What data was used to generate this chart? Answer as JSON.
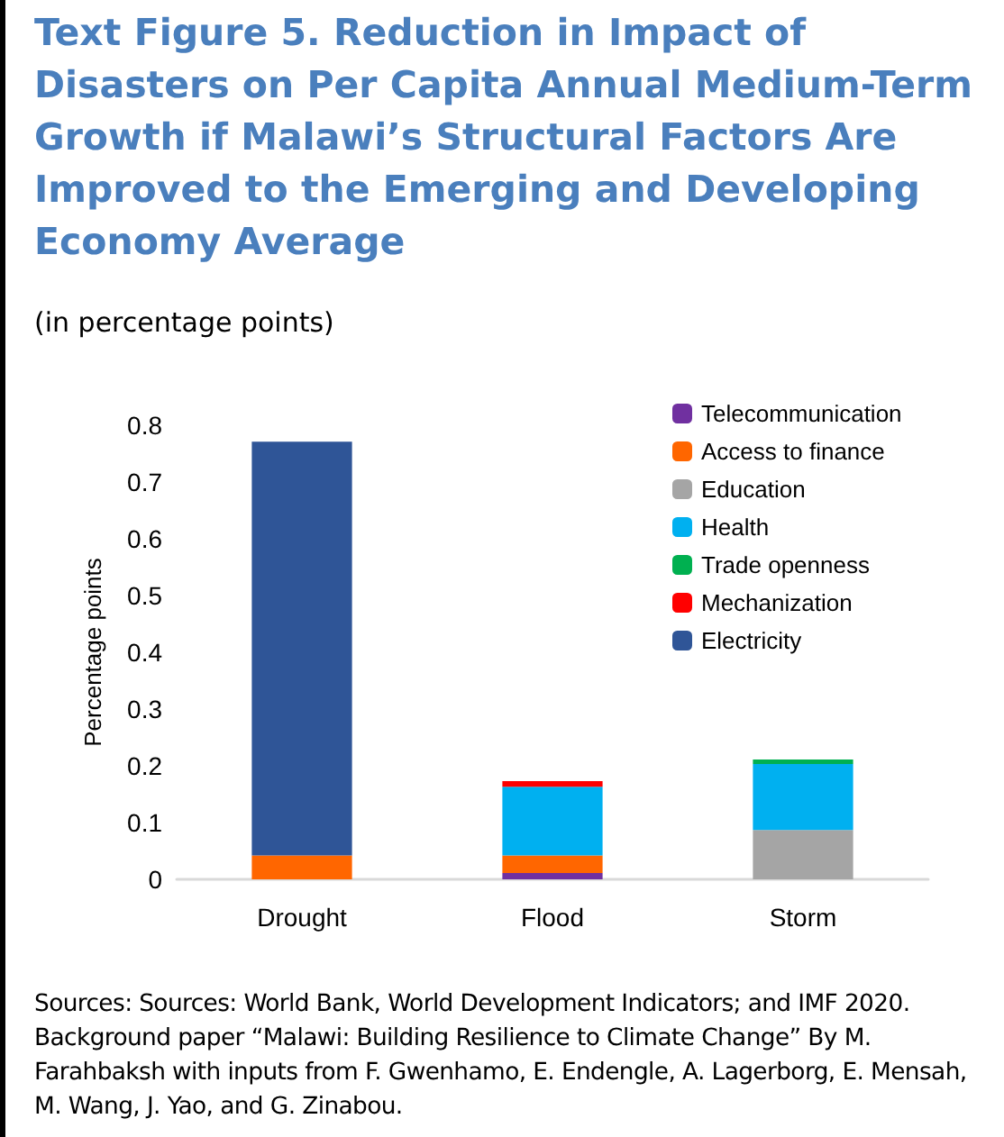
{
  "chart_data": {
    "type": "bar",
    "title": "Text Figure 5. Reduction in Impact of Disasters on Per Capita Annual Medium-Term Growth if Malawi’s Structural Factors Are Improved to the Emerging and Developing Economy Average",
    "subtitle": "(in percentage points)",
    "ylabel": "Percentage points",
    "categories": [
      "Drought",
      "Flood",
      "Storm"
    ],
    "stacked": true,
    "series": [
      {
        "name": "Telecommunication",
        "color": "#7030a0",
        "values": [
          null,
          0.011,
          null
        ]
      },
      {
        "name": "Access to finance",
        "color": "#ff6600",
        "values": [
          0.042,
          0.031,
          null
        ]
      },
      {
        "name": "Education",
        "color": "#a5a5a5",
        "values": [
          null,
          null,
          0.087
        ]
      },
      {
        "name": "Health",
        "color": "#00b0f0",
        "values": [
          null,
          0.121,
          0.116
        ]
      },
      {
        "name": "Trade openness",
        "color": "#00b050",
        "values": [
          null,
          null,
          0.008
        ]
      },
      {
        "name": "Mechanization",
        "color": "#ff0000",
        "values": [
          null,
          0.01,
          null
        ]
      },
      {
        "name": "Electricity",
        "color": "#2f5597",
        "values": [
          0.729,
          null,
          null
        ]
      }
    ],
    "ylim": [
      0,
      0.8
    ],
    "yticks": [
      0,
      0.1,
      0.2,
      0.3,
      0.4,
      0.5,
      0.6,
      0.7,
      0.8
    ],
    "grid": false,
    "legend": "top right",
    "annotations": [
      "Sources:  Sources: World Bank, World Development Indicators; and IMF 2020. Background paper “Malawi: Building Resilience to Climate Change” By M. Farahbaksh with inputs from F. Gwenhamo, E. Endengle, A. Lagerborg, E. Mensah, M. Wang, J. Yao, and G. Zinabou."
    ]
  }
}
